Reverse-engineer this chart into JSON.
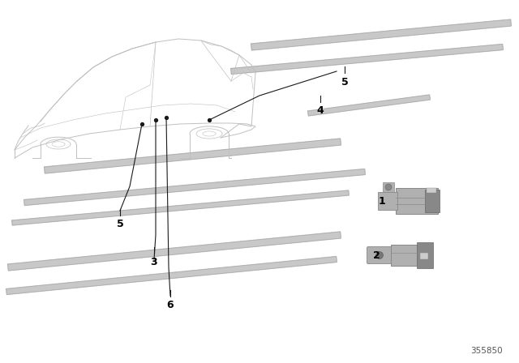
{
  "bg_color": "#ffffff",
  "line_color": "#1a1a1a",
  "car_line_color": "#c0c0c0",
  "strip_color": "#c8c8c8",
  "strip_edge_color": "#aaaaaa",
  "connector_body": "#b0b0b0",
  "connector_dark": "#888888",
  "connector_light": "#cccccc",
  "text_color": "#000000",
  "part_number": "355850",
  "part_number_color": "#555555"
}
